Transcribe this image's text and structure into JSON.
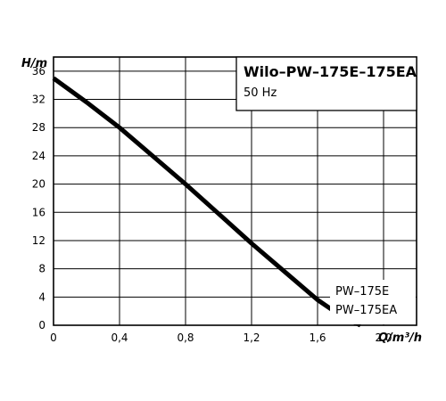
{
  "chart_data": {
    "type": "line",
    "title": "Wilo–PW–175E–175EA",
    "subtitle": "50 Hz",
    "xlabel": "Q/m³/h",
    "ylabel": "H/m",
    "xlim": [
      0,
      2.2
    ],
    "ylim": [
      0,
      38
    ],
    "x_ticks": [
      "0",
      "0,4",
      "0,8",
      "1,2",
      "1,6",
      "2,0"
    ],
    "y_ticks": [
      "0",
      "4",
      "8",
      "12",
      "16",
      "20",
      "24",
      "28",
      "32",
      "36"
    ],
    "x_tick_values": [
      0,
      0.4,
      0.8,
      1.2,
      1.6,
      2.0
    ],
    "y_tick_values": [
      0,
      4,
      8,
      12,
      16,
      20,
      24,
      28,
      32,
      36
    ],
    "grid": true,
    "series": [
      {
        "name": "",
        "x": [
          0,
          0.2,
          0.4,
          0.6,
          0.8,
          1.0,
          1.2,
          1.4,
          1.6,
          1.75,
          1.86
        ],
        "y": [
          35,
          31.6,
          28,
          24,
          20,
          15.8,
          11.6,
          7.6,
          3.6,
          1.2,
          0
        ]
      }
    ],
    "legend": {
      "placement": "bottom-right",
      "lines": [
        "PW–175E",
        "PW–175EA"
      ]
    },
    "colors": {
      "line": "#000000",
      "grid": "#000000",
      "background": "#ffffff"
    }
  }
}
